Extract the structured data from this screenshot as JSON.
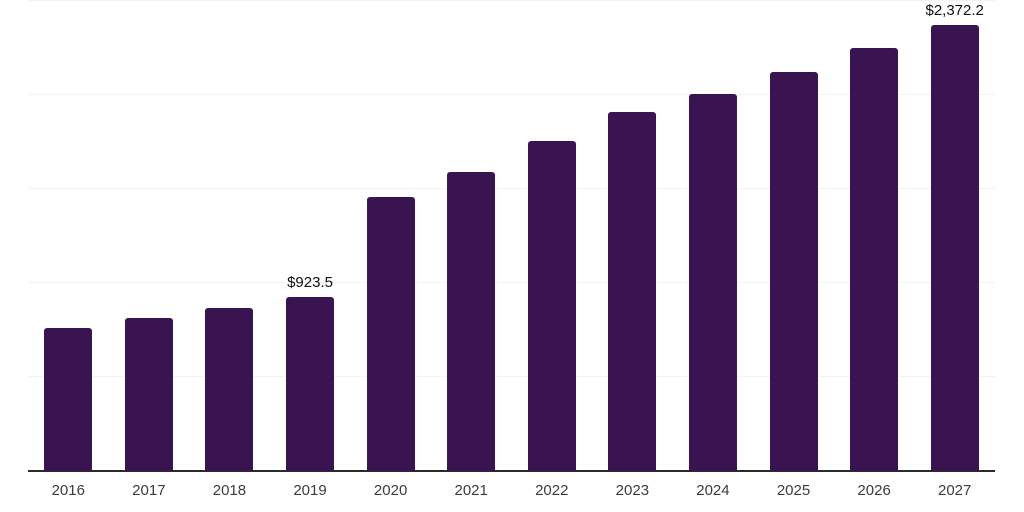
{
  "chart_data": {
    "type": "bar",
    "categories": [
      "2016",
      "2017",
      "2018",
      "2019",
      "2020",
      "2021",
      "2022",
      "2023",
      "2024",
      "2025",
      "2026",
      "2027"
    ],
    "values": [
      761,
      814,
      868,
      923.5,
      1455,
      1593,
      1753,
      1908,
      2007,
      2125,
      2250,
      2372.2
    ],
    "point_labels": [
      {
        "category": "2019",
        "text": "$923.5"
      },
      {
        "category": "2027",
        "text": "$2,372.2"
      }
    ],
    "title": "",
    "xlabel": "",
    "ylabel": "",
    "ylim": [
      0,
      2500
    ],
    "gridline_values": [
      500,
      1000,
      1500,
      2000,
      2500
    ],
    "grid": "horizontal",
    "legend": "none",
    "colors": {
      "bar": "#3a1450",
      "axis_line": "#2b2b2b",
      "gridline": "#f2f2f2",
      "tick_label": "#3c3c3c",
      "point_label": "#111111",
      "background": "#ffffff"
    }
  }
}
